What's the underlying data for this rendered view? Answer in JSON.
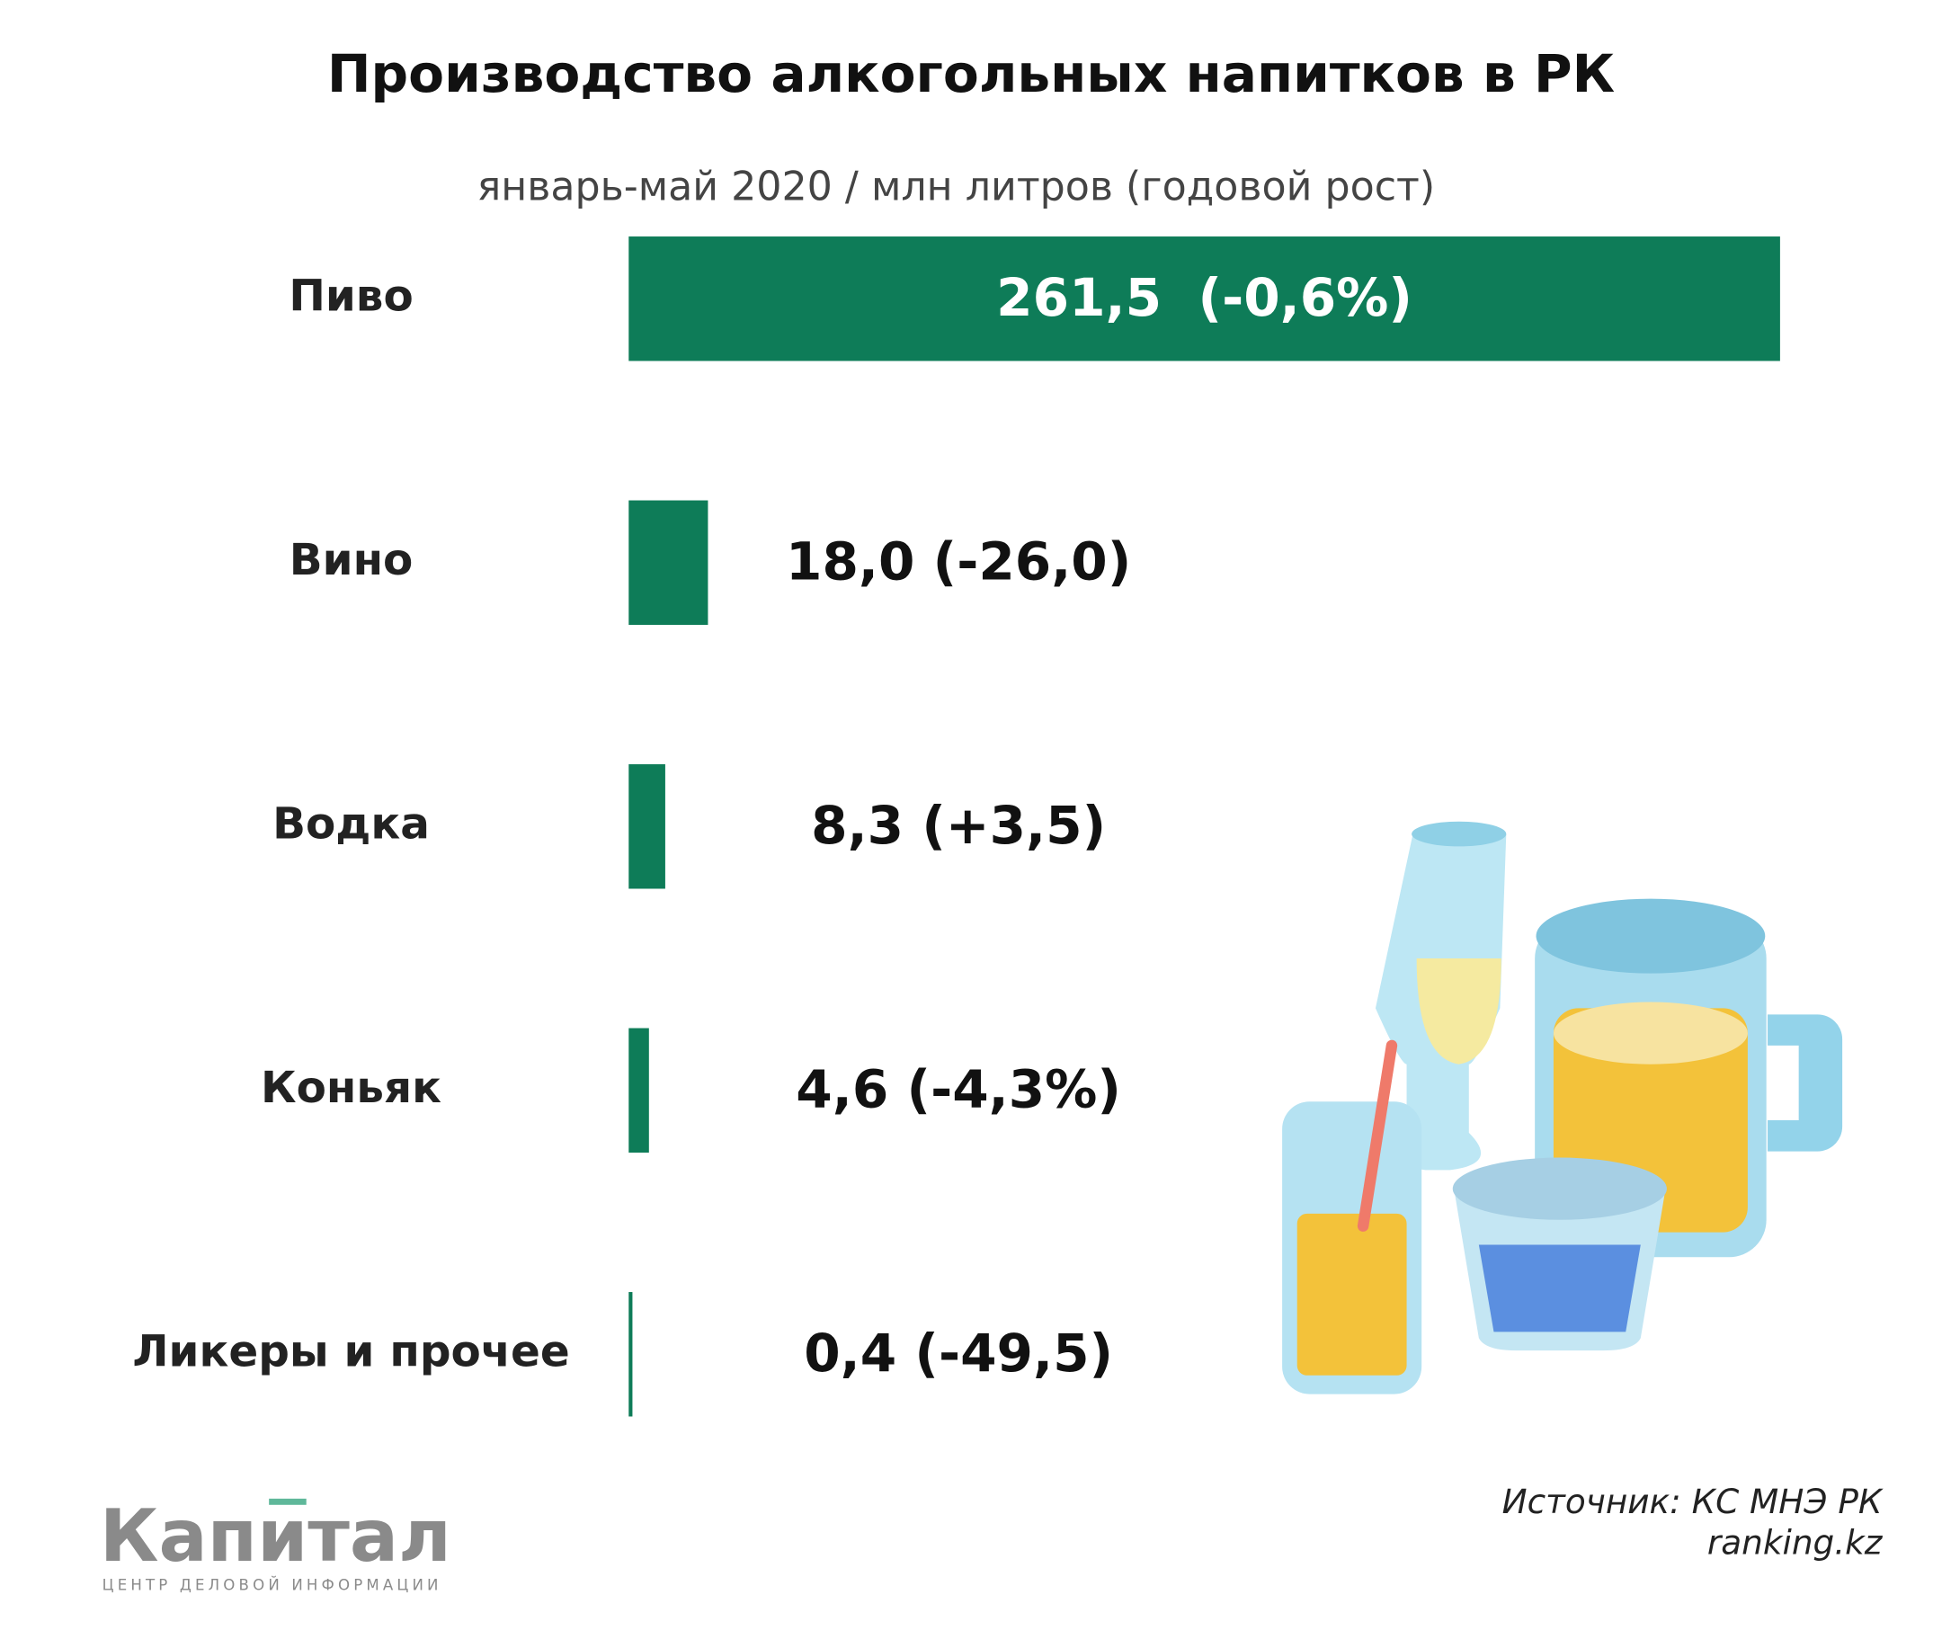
{
  "chart_data": {
    "type": "bar",
    "orientation": "horizontal",
    "title": "Производство алкогольных напитков в РК",
    "subtitle": "январь-май 2020 / млн литров (годовой рост)",
    "categories": [
      "Пиво",
      "Вино",
      "Водка",
      "Коньяк",
      "Ликеры и прочее"
    ],
    "values": [
      261.5,
      18.0,
      8.3,
      4.6,
      0.4
    ],
    "value_labels": [
      "261,5  (-0,6%)",
      "18,0 (-26,0)",
      "8,3 (+3,5)",
      "4,6 (-4,3%)",
      "0,4 (-49,5)"
    ],
    "color": "#0e7c58",
    "source": "Источник: КС МНЭ РК",
    "site": "ranking.kz",
    "logo": "Капитал",
    "logo_tagline": "ЦЕНТР ДЕЛОВОЙ ИНФОРМАЦИИ"
  }
}
